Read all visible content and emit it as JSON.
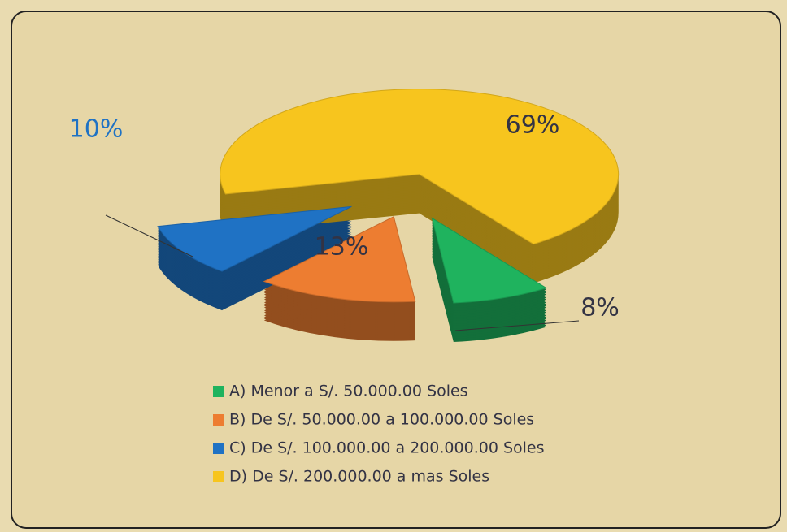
{
  "chart_data": {
    "type": "pie",
    "categories": [
      "A) Menor a S/. 50.000.00 Soles",
      "B) De S/. 50.000.00 a 100.000.00 Soles",
      "C) De S/. 100.000.00 a 200.000.00 Soles",
      "D) De S/. 200.000.00 a mas Soles"
    ],
    "values": [
      8,
      13,
      10,
      69
    ],
    "value_labels": [
      "8%",
      "13%",
      "10%",
      "69%"
    ],
    "colors": [
      "#1fb35e",
      "#ed7d31",
      "#1f72c4",
      "#f7c51e"
    ],
    "legend": "bottom"
  }
}
